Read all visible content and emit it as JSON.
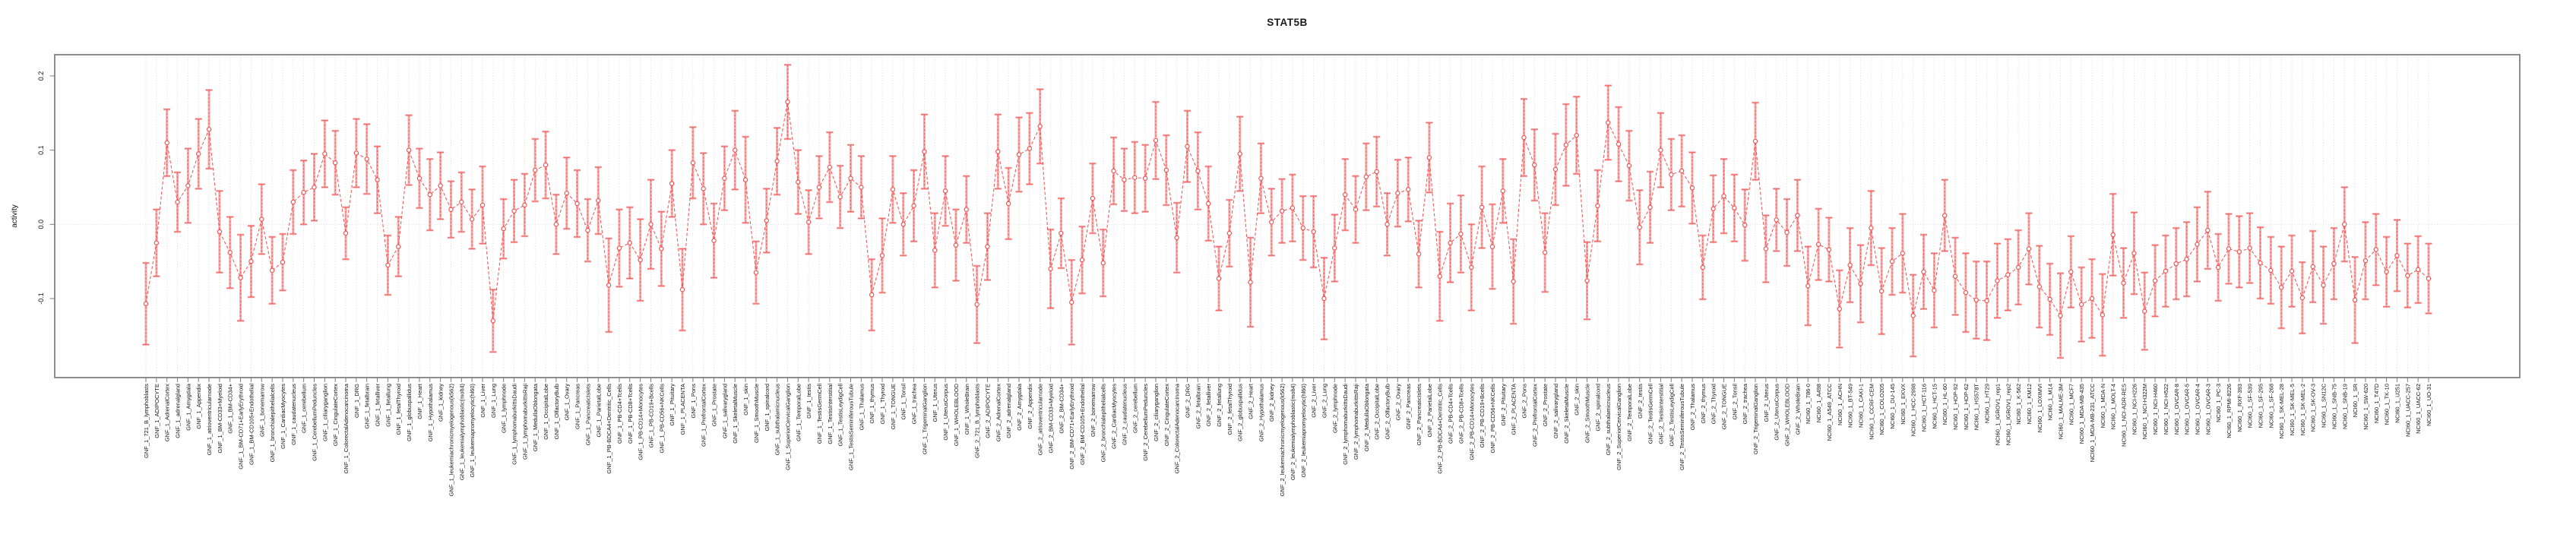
{
  "chart_data": {
    "type": "line",
    "title": "STAT5B",
    "xlabel": "",
    "ylabel": "activity",
    "legend": "none",
    "grid": "vertical dotted line per category; horizontal dotted line at y=0",
    "marker": "open-circle with vertical error bars",
    "ylim": [
      -0.2065,
      0.2286
    ],
    "yticks": [
      -0.1,
      0.0,
      0.1,
      0.2
    ],
    "ytick_labels": [
      "-0.1",
      "0.0",
      "0.1",
      "0.2"
    ],
    "colors": {
      "series": "#ef5555",
      "error_bar": "#f7abab",
      "gridline": "#d9d9d9",
      "axis_frame": "#7a7a7a",
      "text": "#111111",
      "background": "#ffffff"
    },
    "categories": [
      "GNF_1_721_B_lymphoblasts",
      "GNF_1_ADIPOCYTE",
      "GNF_1_AdrenalCortex",
      "GNF_1_adrenalgland",
      "GNF_1_Amygdala",
      "GNF_1_Appendix",
      "GNF_1_atrioventricularnode",
      "GNF_1_BM-CD33+Myeloid",
      "GNF_1_BM-CD34+",
      "GNF_1_BM-CD71+EarlyErythroid",
      "GNF_1_BM-CD105+Endothelial",
      "GNF_1_bonemarrow",
      "GNF_1_bronchialepithelialcells",
      "GNF_1_CardiacMyocytes",
      "GNF_1_caudatenucleus",
      "GNF_1_cerebellum",
      "GNF_1_CerebellumPeduncles",
      "GNF_1_ciliaryganglion",
      "GNF_1_CingulateCortex",
      "GNF_1_ColorectalAdenocarcinoma",
      "GNF_1_DRG",
      "GNF_1_fetalbrain",
      "GNF_1_fetalliver",
      "GNF_1_fetallung",
      "GNF_1_fetalThyroid",
      "GNF_1_globuspallidus",
      "GNF_1_Heart",
      "GNF_1_Hypothalamus",
      "GNF_1_kidney",
      "GNF_1_leukemiachronicmyelogenous(k562)",
      "GNF_1_leukemialymphoblastic(molt4)",
      "GNF_1_leukemiapromyelocytic(hl60)",
      "GNF_1_Liver",
      "GNF_1_Lung",
      "GNF_1_lymphnode",
      "GNF_1_lymphomaburkittsDaudi",
      "GNF_1_lymphomaburkittsRaji",
      "GNF_1_MedullaOblongata",
      "GNF_1_OccipitalLobe",
      "GNF_1_OlfactoryBulb",
      "GNF_1_Ovary",
      "GNF_1_Pancreas",
      "GNF_1_PancreaticIslets",
      "GNF_1_ParietalLobe",
      "GNF_1_PB-BDCA4+Dentritic_Cells",
      "GNF_1_PB-CD4+Tcells",
      "GNF_1_PB-CD8+Tcells",
      "GNF_1_PB-CD14+Monocytes",
      "GNF_1_PB-CD19+Bcells",
      "GNF_1_PB-CD56+NKCells",
      "GNF_1_Pituitary",
      "GNF_1_PLACENTA",
      "GNF_1_Pons",
      "GNF_1_PrefrontalCortex",
      "GNF_1_Prostate",
      "GNF_1_salivarygland",
      "GNF_1_SkeletalMuscle",
      "GNF_1_skin",
      "GNF_1_SmoothMuscle",
      "GNF_1_spinalcord",
      "GNF_1_subthalamicnucleus",
      "GNF_1_SuperiorCervicalGanglion",
      "GNF_1_TemporalLobe",
      "GNF_1_testis",
      "GNF_1_TestisGermCell",
      "GNF_1_TestisInterstitial",
      "GNF_1_TestisLeydigCell",
      "GNF_1_TestisSeminiferousTubule",
      "GNF_1_Thalamus",
      "GNF_1_thymus",
      "GNF_1_Thyroid",
      "GNF_1_TONGUE",
      "GNF_1_Tonsil",
      "GNF_1_trachea",
      "GNF_1_TrigeminalGanglion",
      "GNF_1_Uterus",
      "GNF_1_UterusCorpus",
      "GNF_1_WHOLEBLOOD",
      "GNF_1_WholeBrain",
      "GNF_2_721_B_lymphoblasts",
      "GNF_2_ADIPOCYTE",
      "GNF_2_AdrenalCortex",
      "GNF_2_adrenalgland",
      "GNF_2_Amygdala",
      "GNF_2_Appendix",
      "GNF_2_atrioventricularnode",
      "GNF_2_BM-CD33+Myeloid",
      "GNF_2_BM-CD34+",
      "GNF_2_BM-CD71+EarlyErythroid",
      "GNF_2_BM-CD105+Endothelial",
      "GNF_2_bonemarrow",
      "GNF_2_bronchialepithelialcells",
      "GNF_2_CardiacMyocytes",
      "GNF_2_caudatenucleus",
      "GNF_2_cerebellum",
      "GNF_2_CerebellumPeduncles",
      "GNF_2_ciliaryganglion",
      "GNF_2_CingulateCortex",
      "GNF_2_ColorectalAdenocarcinoma",
      "GNF_2_DRG",
      "GNF_2_fetalbrain",
      "GNF_2_fetalliver",
      "GNF_2_fetallung",
      "GNF_2_fetalThyroid",
      "GNF_2_globuspallidus",
      "GNF_2_Heart",
      "GNF_2_Hypothalamus",
      "GNF_2_kidney",
      "GNF_2_leukemiachronicmyelogenous(k562)",
      "GNF_2_leukemialymphoblastic(molt4)",
      "GNF_2_leukemiapromyelocytic(hl60)",
      "GNF_2_Liver",
      "GNF_2_Lung",
      "GNF_2_lymphnode",
      "GNF_2_lymphomaburkittsDaudi",
      "GNF_2_lymphomaburkittsRaji",
      "GNF_2_MedullaOblongata",
      "GNF_2_OccipitalLobe",
      "GNF_2_OlfactoryBulb",
      "GNF_2_Ovary",
      "GNF_2_Pancreas",
      "GNF_2_PancreaticIslets",
      "GNF_2_ParietalLobe",
      "GNF_2_PB-BDCA4+Dentritic_Cells",
      "GNF_2_PB-CD4+Tcells",
      "GNF_2_PB-CD8+Tcells",
      "GNF_2_PB-CD14+Monocytes",
      "GNF_2_PB-CD19+Bcells",
      "GNF_2_PB-CD56+NKCells",
      "GNF_2_Pituitary",
      "GNF_2_PLACENTA",
      "GNF_2_Pons",
      "GNF_2_PrefrontalCortex",
      "GNF_2_Prostate",
      "GNF_2_salivarygland",
      "GNF_2_SkeletalMuscle",
      "GNF_2_skin",
      "GNF_2_SmoothMuscle",
      "GNF_2_spinalcord",
      "GNF_2_subthalamicnucleus",
      "GNF_2_SuperiorCervicalGanglion",
      "GNF_2_TemporalLobe",
      "GNF_2_testis",
      "GNF_2_TestisGermCell",
      "GNF_2_TestisInterstitial",
      "GNF_2_TestisLeydigCell",
      "GNF_2_TestisSeminiferousTubule",
      "GNF_2_Thalamus",
      "GNF_2_thymus",
      "GNF_2_Thyroid",
      "GNF_2_TONGUE",
      "GNF_2_Tonsil",
      "GNF_2_trachea",
      "GNF_2_TrigeminalGanglion",
      "GNF_2_Uterus",
      "GNF_2_UterusCorpus",
      "GNF_2_WHOLEBLOOD",
      "GNF_2_WholeBrain",
      "NCI60_1_786-0",
      "NCI60_1_A498",
      "NCI60_1_A549_ATCC",
      "NCI60_1_ACHN",
      "NCI60_1_BT-549",
      "NCI60_1_CAKI-1",
      "NCI60_1_CCRF-CEM",
      "NCI60_1_COLO205",
      "NCI60_1_DU-145",
      "NCI60_1_EKVX",
      "NCI60_1_HCC-2998",
      "NCI60_1_HCT-116",
      "NCI60_1_HCT-15",
      "NCI60_1_HL-60",
      "NCI60_1_HOP-92",
      "NCI60_1_HOP-62",
      "NCI60_1_HS578T",
      "NCI60_1_HT29",
      "NCI60_1_IGROV1_rep1",
      "NCI60_1_IGROV1_rep2",
      "NCI60_1_K-562",
      "NCI60_1_KM12",
      "NCI60_1_LOXIMVI",
      "NCI60_1_M14",
      "NCI60_1_MALME-3M",
      "NCI60_1_MCF7",
      "NCI60_1_MDA-MB-435",
      "NCI60_1_MDA-MB-231_ATCC",
      "NCI60_1_MDA-N",
      "NCI60_1_MOLT-4",
      "NCI60_1_NCI-ADR-RES",
      "NCI60_1_NCI-H226",
      "NCI60_1_NCI-H322M",
      "NCI60_1_NCI-H460",
      "NCI60_1_NCI-H522",
      "NCI60_1_OVCAR-8",
      "NCI60_1_OVCAR-5",
      "NCI60_1_OVCAR-4",
      "NCI60_1_OVCAR-3",
      "NCI60_1_PC-3",
      "NCI60_1_RPMI-8226",
      "NCI60_1_RXF-393",
      "NCI60_1_SF-539",
      "NCI60_1_SF-295",
      "NCI60_1_SF-268",
      "NCI60_1_SK-MEL-28",
      "NCI60_1_SK-MEL-5",
      "NCI60_1_SK-MEL-2",
      "NCI60_1_SK-OV-3",
      "NCI60_1_SN12C",
      "NCI60_1_SNB-75",
      "NCI60_1_SNB-19",
      "NCI60_1_SR",
      "NCI60_1_SW-620",
      "NCI60_1_T47D",
      "NCI60_1_TK-10",
      "NCI60_1_U251",
      "NCI60_1_UACC-257",
      "NCI60_1_UACC-62",
      "NCI60_1_UO-31"
    ],
    "values": [
      -0.107,
      -0.025,
      0.11,
      0.03,
      0.052,
      0.095,
      0.128,
      -0.01,
      -0.038,
      -0.072,
      -0.05,
      0.007,
      -0.062,
      -0.051,
      0.03,
      0.043,
      0.05,
      0.095,
      0.083,
      -0.012,
      0.096,
      0.088,
      0.06,
      -0.055,
      -0.03,
      0.1,
      0.062,
      0.04,
      0.052,
      0.02,
      0.03,
      0.007,
      0.026,
      -0.13,
      -0.006,
      0.018,
      0.026,
      0.073,
      0.08,
      0.0,
      0.042,
      0.028,
      -0.008,
      0.032,
      -0.082,
      -0.032,
      -0.025,
      -0.048,
      0.0,
      -0.033,
      0.055,
      -0.088,
      0.083,
      0.048,
      -0.022,
      0.062,
      0.1,
      0.06,
      -0.065,
      0.005,
      0.085,
      0.165,
      0.057,
      0.003,
      0.05,
      0.077,
      0.037,
      0.062,
      0.05,
      -0.095,
      -0.042,
      0.047,
      0.0,
      0.025,
      0.098,
      -0.035,
      0.045,
      -0.028,
      0.02,
      -0.108,
      -0.03,
      0.098,
      0.028,
      0.094,
      0.102,
      0.132,
      -0.06,
      -0.012,
      -0.105,
      -0.048,
      0.035,
      -0.052,
      0.072,
      0.06,
      0.063,
      0.062,
      0.113,
      0.073,
      -0.018,
      0.105,
      0.072,
      0.028,
      -0.073,
      -0.012,
      0.095,
      -0.078,
      0.062,
      0.003,
      0.018,
      0.022,
      -0.005,
      -0.01,
      -0.1,
      -0.032,
      0.04,
      0.02,
      0.064,
      0.071,
      0.0,
      0.042,
      0.047,
      -0.04,
      0.09,
      -0.07,
      -0.025,
      -0.013,
      -0.058,
      0.023,
      -0.03,
      0.045,
      -0.077,
      0.117,
      0.08,
      -0.038,
      0.074,
      0.107,
      0.12,
      -0.076,
      0.025,
      0.137,
      0.108,
      0.079,
      -0.004,
      0.023,
      0.1,
      0.067,
      0.072,
      0.049,
      -0.058,
      0.021,
      0.038,
      0.022,
      -0.001,
      0.112,
      -0.033,
      0.006,
      -0.011,
      0.012,
      -0.083,
      -0.027,
      -0.034,
      -0.114,
      -0.055,
      -0.08,
      -0.005,
      -0.09,
      -0.05,
      -0.039,
      -0.123,
      -0.064,
      -0.089,
      0.012,
      -0.07,
      -0.092,
      -0.102,
      -0.103,
      -0.076,
      -0.068,
      -0.058,
      -0.033,
      -0.084,
      -0.101,
      -0.123,
      -0.064,
      -0.108,
      -0.1,
      -0.122,
      -0.014,
      -0.079,
      -0.039,
      -0.117,
      -0.076,
      -0.063,
      -0.053,
      -0.047,
      -0.027,
      -0.008,
      -0.058,
      -0.033,
      -0.037,
      -0.032,
      -0.052,
      -0.062,
      -0.085,
      -0.063,
      -0.099,
      -0.057,
      -0.082,
      -0.053,
      0.0,
      -0.102,
      -0.049,
      -0.034,
      -0.064,
      -0.042,
      -0.069,
      -0.061,
      -0.073
    ],
    "errors": [
      0.055,
      0.045,
      0.045,
      0.04,
      0.05,
      0.047,
      0.053,
      0.055,
      0.048,
      0.058,
      0.048,
      0.047,
      0.045,
      0.038,
      0.043,
      0.043,
      0.045,
      0.045,
      0.043,
      0.035,
      0.046,
      0.047,
      0.045,
      0.04,
      0.04,
      0.047,
      0.04,
      0.048,
      0.045,
      0.038,
      0.04,
      0.04,
      0.052,
      0.042,
      0.04,
      0.042,
      0.042,
      0.042,
      0.045,
      0.04,
      0.048,
      0.045,
      0.042,
      0.045,
      0.063,
      0.052,
      0.048,
      0.055,
      0.06,
      0.05,
      0.045,
      0.055,
      0.048,
      0.048,
      0.05,
      0.043,
      0.053,
      0.058,
      0.042,
      0.043,
      0.045,
      0.05,
      0.043,
      0.043,
      0.042,
      0.047,
      0.042,
      0.045,
      0.042,
      0.048,
      0.05,
      0.045,
      0.042,
      0.048,
      0.05,
      0.05,
      0.047,
      0.048,
      0.045,
      0.052,
      0.045,
      0.05,
      0.048,
      0.05,
      0.048,
      0.05,
      0.053,
      0.047,
      0.057,
      0.045,
      0.047,
      0.045,
      0.045,
      0.042,
      0.048,
      0.045,
      0.052,
      0.047,
      0.047,
      0.048,
      0.052,
      0.05,
      0.043,
      0.045,
      0.05,
      0.06,
      0.047,
      0.045,
      0.043,
      0.045,
      0.043,
      0.048,
      0.055,
      0.045,
      0.048,
      0.045,
      0.045,
      0.047,
      0.042,
      0.045,
      0.043,
      0.045,
      0.047,
      0.06,
      0.053,
      0.052,
      0.058,
      0.055,
      0.057,
      0.043,
      0.057,
      0.052,
      0.048,
      0.053,
      0.048,
      0.055,
      0.052,
      0.052,
      0.048,
      0.05,
      0.05,
      0.047,
      0.05,
      0.048,
      0.05,
      0.048,
      0.048,
      0.048,
      0.043,
      0.045,
      0.05,
      0.045,
      0.048,
      0.052,
      0.045,
      0.042,
      0.045,
      0.048,
      0.053,
      0.048,
      0.043,
      0.052,
      0.05,
      0.052,
      0.05,
      0.058,
      0.045,
      0.053,
      0.055,
      0.05,
      0.05,
      0.048,
      0.052,
      0.053,
      0.052,
      0.053,
      0.05,
      0.048,
      0.05,
      0.048,
      0.055,
      0.048,
      0.057,
      0.048,
      0.05,
      0.053,
      0.055,
      0.055,
      0.047,
      0.055,
      0.052,
      0.048,
      0.048,
      0.048,
      0.05,
      0.05,
      0.052,
      0.045,
      0.047,
      0.048,
      0.047,
      0.048,
      0.045,
      0.055,
      0.048,
      0.048,
      0.048,
      0.052,
      0.048,
      0.05,
      0.058,
      0.052,
      0.048,
      0.047,
      0.048,
      0.043,
      0.045,
      0.047
    ]
  }
}
